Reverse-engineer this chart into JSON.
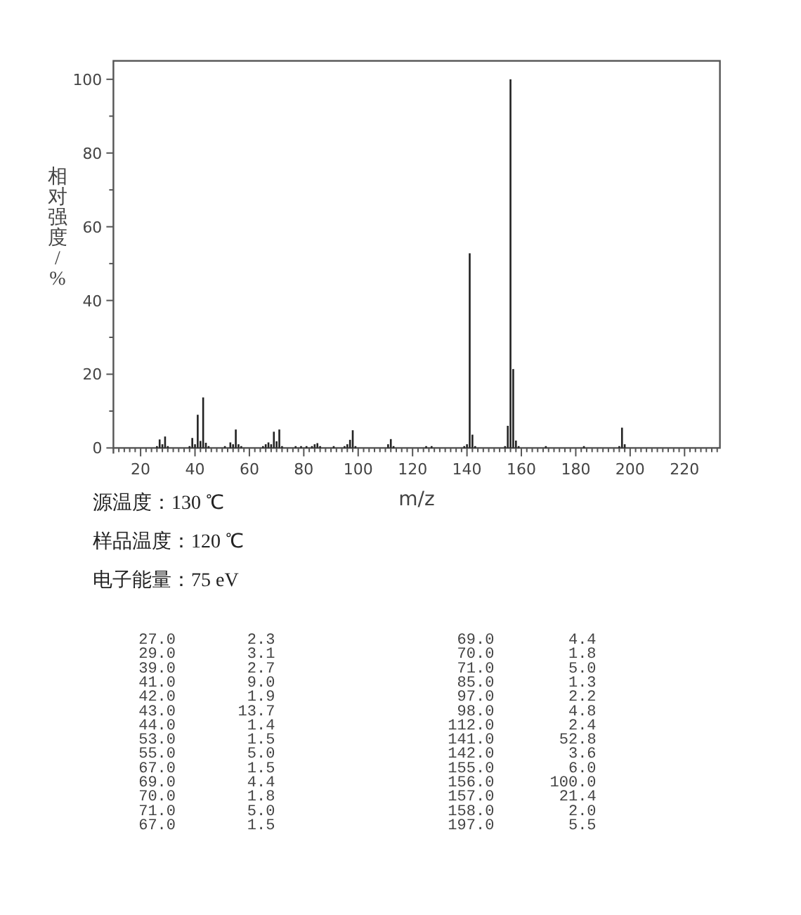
{
  "chart_data": [
    {
      "type": "bar",
      "color": "#222222",
      "xlabel": "m/z",
      "ylabel": "相对强度/%",
      "x": [
        26,
        27,
        28,
        29,
        30,
        38,
        39,
        40,
        41,
        42,
        43,
        44,
        45,
        51,
        53,
        54,
        55,
        56,
        57,
        65,
        66,
        67,
        68,
        69,
        70,
        71,
        72,
        77,
        79,
        81,
        83,
        84,
        85,
        86,
        91,
        95,
        96,
        97,
        98,
        99,
        111,
        112,
        113,
        125,
        127,
        139,
        140,
        141,
        142,
        143,
        154,
        155,
        156,
        157,
        158,
        159,
        169,
        183,
        196,
        197,
        198
      ],
      "values": [
        0.5,
        2.3,
        1,
        3.1,
        0.5,
        0.5,
        2.7,
        1,
        9.0,
        1.9,
        13.7,
        1.4,
        0.5,
        0.5,
        1.5,
        1,
        5.0,
        1,
        0.5,
        0.5,
        1,
        1.5,
        1,
        4.4,
        1.8,
        5.0,
        0.5,
        0.5,
        0.5,
        0.5,
        0.5,
        1,
        1.3,
        0.5,
        0.5,
        0.5,
        1,
        2.2,
        4.8,
        0.5,
        1,
        2.4,
        0.5,
        0.5,
        0.5,
        0.5,
        1,
        52.8,
        3.6,
        0.5,
        0.5,
        6.0,
        100,
        21.4,
        2.0,
        0.5,
        0.5,
        0.5,
        0.5,
        5.5,
        1
      ],
      "xlim": [
        10,
        233
      ],
      "ylim": [
        0,
        105
      ],
      "xticks": [
        {
          "value": 12,
          "label": null
        },
        {
          "value": 14,
          "label": null
        },
        {
          "value": 16,
          "label": null
        },
        {
          "value": 18,
          "label": null
        },
        20,
        {
          "value": 22,
          "label": null
        },
        {
          "value": 24,
          "label": null
        },
        {
          "value": 26,
          "label": null
        },
        {
          "value": 28,
          "label": null
        },
        {
          "value": 30,
          "label": null
        },
        {
          "value": 32,
          "label": null
        },
        {
          "value": 34,
          "label": null
        },
        {
          "value": 36,
          "label": null
        },
        {
          "value": 38,
          "label": null
        },
        40,
        {
          "value": 42,
          "label": null
        },
        {
          "value": 44,
          "label": null
        },
        {
          "value": 46,
          "label": null
        },
        {
          "value": 48,
          "label": null
        },
        {
          "value": 50,
          "label": null
        },
        {
          "value": 52,
          "label": null
        },
        {
          "value": 54,
          "label": null
        },
        {
          "value": 56,
          "label": null
        },
        {
          "value": 58,
          "label": null
        },
        60,
        {
          "value": 62,
          "label": null
        },
        {
          "value": 64,
          "label": null
        },
        {
          "value": 66,
          "label": null
        },
        {
          "value": 68,
          "label": null
        },
        {
          "value": 70,
          "label": null
        },
        {
          "value": 72,
          "label": null
        },
        {
          "value": 74,
          "label": null
        },
        {
          "value": 76,
          "label": null
        },
        {
          "value": 78,
          "label": null
        },
        80,
        {
          "value": 82,
          "label": null
        },
        {
          "value": 84,
          "label": null
        },
        {
          "value": 86,
          "label": null
        },
        {
          "value": 88,
          "label": null
        },
        {
          "value": 90,
          "label": null
        },
        {
          "value": 92,
          "label": null
        },
        {
          "value": 94,
          "label": null
        },
        {
          "value": 96,
          "label": null
        },
        {
          "value": 98,
          "label": null
        },
        100,
        {
          "value": 102,
          "label": null
        },
        {
          "value": 104,
          "label": null
        },
        {
          "value": 106,
          "label": null
        },
        {
          "value": 108,
          "label": null
        },
        {
          "value": 110,
          "label": null
        },
        {
          "value": 112,
          "label": null
        },
        {
          "value": 114,
          "label": null
        },
        {
          "value": 116,
          "label": null
        },
        {
          "value": 118,
          "label": null
        },
        120,
        {
          "value": 122,
          "label": null
        },
        {
          "value": 124,
          "label": null
        },
        {
          "value": 126,
          "label": null
        },
        {
          "value": 128,
          "label": null
        },
        {
          "value": 130,
          "label": null
        },
        {
          "value": 132,
          "label": null
        },
        {
          "value": 134,
          "label": null
        },
        {
          "value": 136,
          "label": null
        },
        {
          "value": 138,
          "label": null
        },
        140,
        {
          "value": 142,
          "label": null
        },
        {
          "value": 144,
          "label": null
        },
        {
          "value": 146,
          "label": null
        },
        {
          "value": 148,
          "label": null
        },
        {
          "value": 150,
          "label": null
        },
        {
          "value": 152,
          "label": null
        },
        {
          "value": 154,
          "label": null
        },
        {
          "value": 156,
          "label": null
        },
        {
          "value": 158,
          "label": null
        },
        160,
        {
          "value": 162,
          "label": null
        },
        {
          "value": 164,
          "label": null
        },
        {
          "value": 166,
          "label": null
        },
        {
          "value": 168,
          "label": null
        },
        {
          "value": 170,
          "label": null
        },
        {
          "value": 172,
          "label": null
        },
        {
          "value": 174,
          "label": null
        },
        {
          "value": 176,
          "label": null
        },
        {
          "value": 178,
          "label": null
        },
        180,
        {
          "value": 182,
          "label": null
        },
        {
          "value": 184,
          "label": null
        },
        {
          "value": 186,
          "label": null
        },
        {
          "value": 188,
          "label": null
        },
        {
          "value": 190,
          "label": null
        },
        {
          "value": 192,
          "label": null
        },
        {
          "value": 194,
          "label": null
        },
        {
          "value": 196,
          "label": null
        },
        {
          "value": 198,
          "label": null
        },
        200,
        {
          "value": 202,
          "label": null
        },
        {
          "value": 204,
          "label": null
        },
        {
          "value": 206,
          "label": null
        },
        {
          "value": 208,
          "label": null
        },
        {
          "value": 210,
          "label": null
        },
        {
          "value": 212,
          "label": null
        },
        {
          "value": 214,
          "label": null
        },
        {
          "value": 216,
          "label": null
        },
        {
          "value": 218,
          "label": null
        },
        220,
        {
          "value": 222,
          "label": null
        },
        {
          "value": 224,
          "label": null
        },
        {
          "value": 226,
          "label": null
        },
        {
          "value": 228,
          "label": null
        },
        {
          "value": 230,
          "label": null
        },
        {
          "value": 232,
          "label": null
        }
      ],
      "yticks": [
        0,
        {
          "value": 10,
          "label": null
        },
        20,
        {
          "value": 30,
          "label": null
        },
        40,
        {
          "value": 50,
          "label": null
        },
        60,
        {
          "value": 70,
          "label": null
        },
        80,
        {
          "value": 90,
          "label": null
        },
        100
      ],
      "annotations": [
        "源温度：130 ℃",
        "样品温度：120 ℃",
        "电子能量：75 eV"
      ]
    },
    {
      "type": "other",
      "categories": [
        "27.0",
        "29.0",
        "39.0",
        "41.0",
        "42.0",
        "43.0",
        "44.0",
        "53.0",
        "55.0",
        "67.0",
        "69.0",
        "70.0",
        "71.0",
        "67.0",
        "69.0",
        "70.0",
        "71.0",
        "85.0",
        "97.0",
        "98.0",
        "112.0",
        "141.0",
        "142.0",
        "155.0",
        "156.0",
        "157.0",
        "158.0",
        "197.0"
      ],
      "value_labels": [
        "2.3",
        "3.1",
        "2.7",
        "9.0",
        "1.9",
        "13.7",
        "1.4",
        "1.5",
        "5.0",
        "1.5",
        "4.4",
        "1.8",
        "5.0",
        "1.5",
        "4.4",
        "1.8",
        "5.0",
        "1.3",
        "2.2",
        "4.8",
        "2.4",
        "52.8",
        "3.6",
        "6.0",
        "100.0",
        "21.4",
        "2.0",
        "5.5"
      ]
    }
  ]
}
